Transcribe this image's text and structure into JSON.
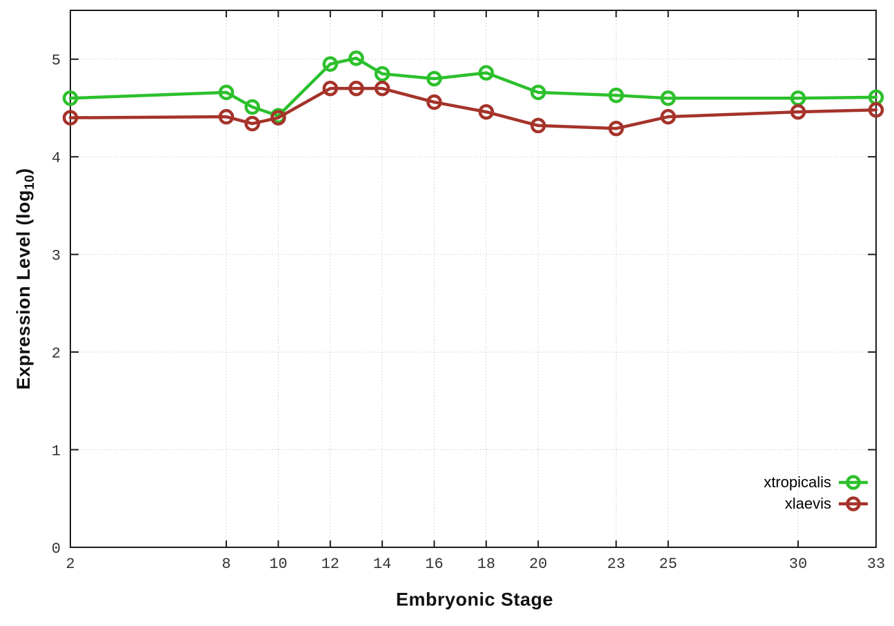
{
  "figure": {
    "xlabel": "Embryonic Stage",
    "ylabel": {
      "prefix": "Expression Level (log",
      "sub": "10",
      "suffix": ")"
    }
  },
  "chart_data": {
    "type": "line",
    "title": "",
    "xlabel": "Embryonic Stage",
    "ylabel": "Expression Level (log10)",
    "x": [
      2,
      8,
      9,
      10,
      12,
      13,
      14,
      16,
      18,
      20,
      23,
      25,
      30,
      33
    ],
    "series": [
      {
        "name": "xtropicalis",
        "color": "#2cc02c",
        "marker": "open-circle",
        "values": [
          4.6,
          4.66,
          4.51,
          4.42,
          4.95,
          5.01,
          4.85,
          4.8,
          4.86,
          4.66,
          4.63,
          4.6,
          4.6,
          4.61
        ]
      },
      {
        "name": "xlaevis",
        "color": "#a5332a",
        "marker": "open-circle",
        "values": [
          4.4,
          4.41,
          4.34,
          4.4,
          4.7,
          4.7,
          4.7,
          4.56,
          4.46,
          4.32,
          4.29,
          4.41,
          4.46,
          4.48
        ]
      }
    ],
    "xticks": [
      2,
      8,
      10,
      12,
      14,
      16,
      18,
      20,
      23,
      25,
      30,
      33
    ],
    "yticks": [
      0,
      1,
      2,
      3,
      4,
      5
    ],
    "xlim": [
      2,
      33
    ],
    "ylim": [
      0,
      5.5
    ],
    "grid": true,
    "grid_style": "dotted",
    "legend_position": "inside-bottom-right",
    "colors": {
      "axis": "#1c1c1c",
      "grid": "#c9c9c9",
      "tick_label": "#333333",
      "background": "#ffffff"
    }
  }
}
